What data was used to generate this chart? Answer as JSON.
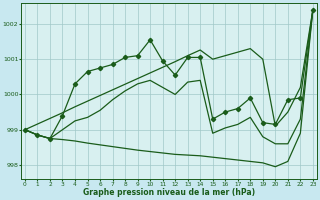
{
  "background_color": "#c8e8f0",
  "plot_bg_color": "#d8f0f0",
  "line_color": "#1a5c1a",
  "grid_color": "#a0c8c8",
  "xlabel": "Graphe pression niveau de la mer (hPa)",
  "xlim": [
    -0.3,
    23.3
  ],
  "ylim": [
    997.6,
    1002.6
  ],
  "yticks": [
    998,
    999,
    1000,
    1001,
    1002
  ],
  "xticks": [
    0,
    1,
    2,
    3,
    4,
    5,
    6,
    7,
    8,
    9,
    10,
    11,
    12,
    13,
    14,
    15,
    16,
    17,
    18,
    19,
    20,
    21,
    22,
    23
  ],
  "line_top_straight": [
    999.0,
    999.16,
    999.32,
    999.48,
    999.65,
    999.81,
    999.97,
    1000.13,
    1000.29,
    1000.45,
    1000.61,
    1000.77,
    1000.93,
    1001.1,
    1001.26,
    1001.0,
    1001.1,
    1001.2,
    1001.3,
    1001.0,
    999.1,
    999.5,
    1000.2,
    1002.4
  ],
  "line_mid_markers": [
    999.0,
    998.85,
    998.75,
    999.4,
    1000.3,
    1000.65,
    1000.75,
    1000.85,
    1001.05,
    1001.1,
    1001.55,
    1000.95,
    1000.55,
    1001.05,
    1001.05,
    999.3,
    999.5,
    999.6,
    999.9,
    999.2,
    999.15,
    999.85,
    999.9,
    1002.4
  ],
  "line_low_mid": [
    999.0,
    998.85,
    998.75,
    999.0,
    999.25,
    999.35,
    999.55,
    999.85,
    1000.1,
    1000.3,
    1000.4,
    1000.2,
    1000.0,
    1000.35,
    1000.4,
    998.9,
    999.05,
    999.15,
    999.35,
    998.8,
    998.6,
    998.6,
    999.3,
    1002.4
  ],
  "line_bottom": [
    999.0,
    998.85,
    998.75,
    998.72,
    998.68,
    998.62,
    998.57,
    998.52,
    998.47,
    998.42,
    998.38,
    998.34,
    998.3,
    998.28,
    998.26,
    998.22,
    998.18,
    998.14,
    998.1,
    998.06,
    997.95,
    998.1,
    998.9,
    1002.4
  ]
}
